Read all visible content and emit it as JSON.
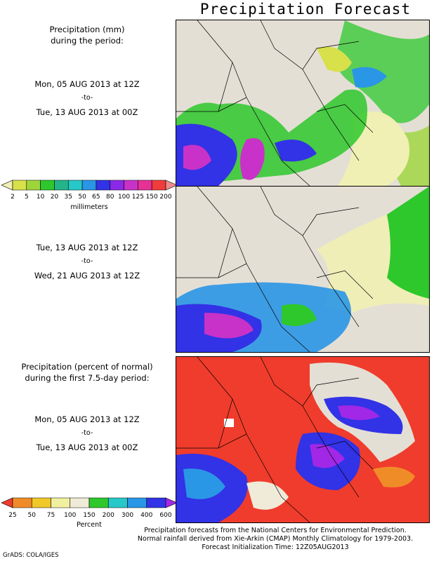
{
  "title": "Precipitation Forecast",
  "panel1": {
    "heading_line1": "Precipitation (mm)",
    "heading_line2": "during the period:",
    "start": "Mon, 05 AUG 2013 at 12Z",
    "to": "-to-",
    "end": "Tue, 13 AUG 2013 at 00Z"
  },
  "panel2": {
    "start": "Tue, 13 AUG 2013 at 12Z",
    "to": "-to-",
    "end": "Wed, 21 AUG 2013 at 12Z"
  },
  "panel3": {
    "heading_line1": "Precipitation (percent of normal)",
    "heading_line2": "during the first 7.5-day period:",
    "start": "Mon, 05 AUG 2013 at 12Z",
    "to": "-to-",
    "end": "Tue, 13 AUG 2013 at 00Z"
  },
  "mm_colorbar": {
    "unit_label": "millimeters",
    "ticks": [
      "2",
      "5",
      "10",
      "20",
      "35",
      "50",
      "65",
      "80",
      "100",
      "125",
      "150",
      "200"
    ],
    "colors": [
      "#f0f0b4",
      "#d8e04a",
      "#9ed63a",
      "#2ec82c",
      "#23b48a",
      "#27c8c8",
      "#2a96e6",
      "#3232e6",
      "#8a2ae6",
      "#c832c8",
      "#e63296",
      "#f03c3c",
      "#f08c8c"
    ]
  },
  "pct_colorbar": {
    "unit_label": "Percent",
    "ticks": [
      "25",
      "50",
      "75",
      "100",
      "150",
      "200",
      "300",
      "400",
      "600"
    ],
    "colors": [
      "#f03c2c",
      "#f08c28",
      "#f0c828",
      "#f0f0a0",
      "#f0ead8",
      "#2ec82c",
      "#27c8c8",
      "#2a96e6",
      "#3232e6",
      "#a028e6"
    ]
  },
  "credits": {
    "line1": "Precipitation forecasts from the National Centers for Environmental Prediction.",
    "line2": "Normal rainfall derived from Xie-Arkin (CMAP) Monthly Climatology for 1979-2003.",
    "line3": "Forecast Initialization Time: 12Z05AUG2013"
  },
  "grads_credit": "GrADS: COLA/IGES"
}
